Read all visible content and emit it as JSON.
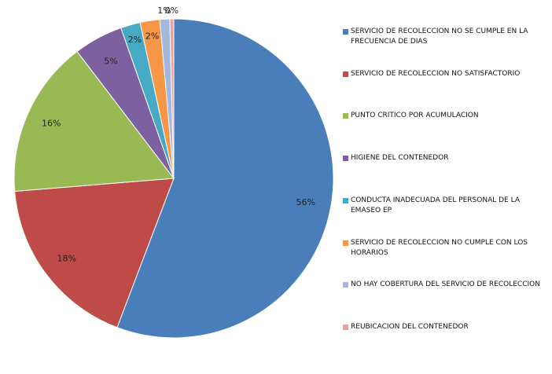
{
  "chart_data": {
    "type": "pie",
    "title": "",
    "categories": [
      "SERVICIO DE RECOLECCION NO SE CUMPLE EN LA FRECUENCIA DE DIAS",
      "SERVICIO DE RECOLECCION NO SATISFACTORIO",
      "PUNTO CRITICO POR ACUMULACION",
      "HIGIENE DEL CONTENEDOR",
      "CONDUCTA INADECUADA DEL PERSONAL DE LA EMASEO EP",
      "SERVICIO DE RECOLECCION NO CUMPLE CON LOS HORARIOS",
      "NO HAY COBERTURA DEL SERVICIO DE RECOLECCION",
      "REUBICACION DEL CONTENEDOR"
    ],
    "values": [
      56,
      18,
      16,
      5,
      2,
      2,
      1,
      0.4
    ],
    "labels": [
      "56%",
      "18%",
      "16%",
      "5%",
      "2%",
      "2%",
      "1%",
      "0%"
    ],
    "colors": [
      "#4a7ebb",
      "#be4b48",
      "#98b954",
      "#7d60a0",
      "#46aac4",
      "#f79646",
      "#a2b8e0",
      "#e8a3a0"
    ],
    "start": "12 o'clock",
    "direction": "clockwise",
    "legend_position": "right"
  }
}
